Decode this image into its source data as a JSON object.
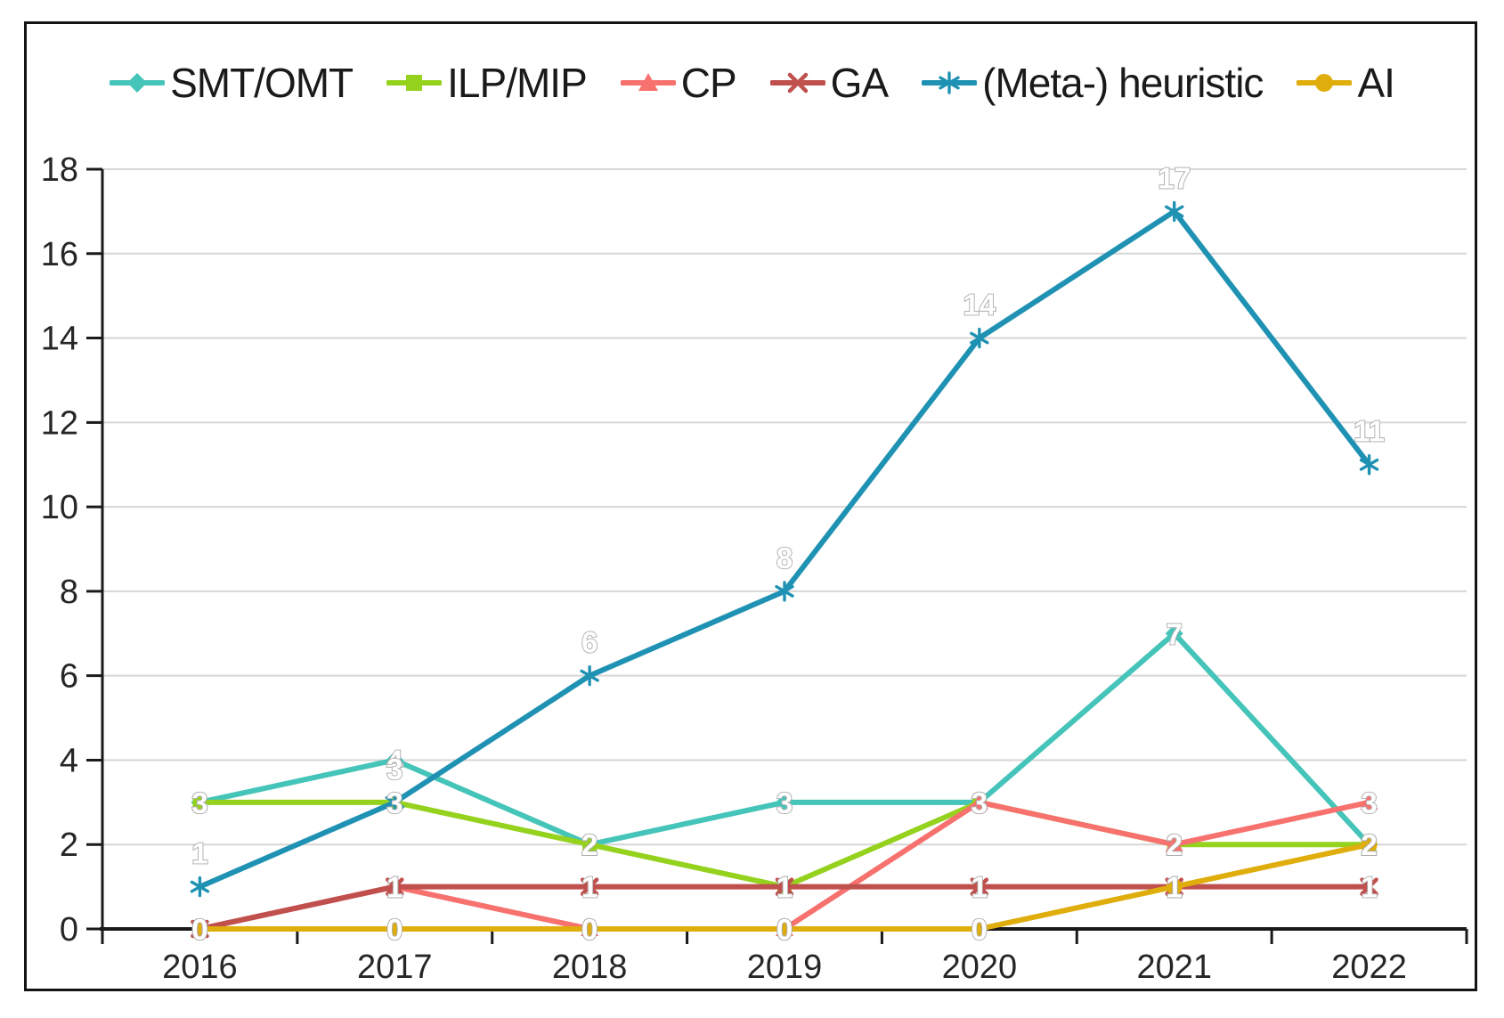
{
  "chart_data": {
    "type": "line",
    "title": "",
    "categories": [
      "2016",
      "2017",
      "2018",
      "2019",
      "2020",
      "2021",
      "2022"
    ],
    "series": [
      {
        "name": "SMT/OMT",
        "marker": "diamond",
        "color": "#45C4B9",
        "values": [
          3,
          4,
          2,
          3,
          3,
          7,
          2
        ],
        "label_position": "center"
      },
      {
        "name": "ILP/MIP",
        "marker": "square",
        "color": "#95D21E",
        "values": [
          3,
          3,
          2,
          1,
          3,
          2,
          2
        ],
        "label_position": "center"
      },
      {
        "name": "CP",
        "marker": "triangle",
        "color": "#F7716E",
        "values": [
          0,
          1,
          0,
          0,
          3,
          2,
          3
        ],
        "label_position": "center"
      },
      {
        "name": "GA",
        "marker": "x",
        "color": "#C0504D",
        "values": [
          0,
          1,
          1,
          1,
          1,
          1,
          1
        ],
        "label_position": "center"
      },
      {
        "name": "(Meta-) heuristic",
        "marker": "asterisk",
        "color": "#1F92B4",
        "values": [
          1,
          3,
          6,
          8,
          14,
          17,
          11
        ],
        "label_position": "above"
      },
      {
        "name": "AI",
        "marker": "circle",
        "color": "#DFAD0C",
        "values": [
          0,
          0,
          0,
          0,
          0,
          1,
          2
        ],
        "label_position": "center"
      }
    ],
    "y_axis": {
      "min": 0,
      "max": 18,
      "step": 2,
      "tick_labels": [
        "0",
        "2",
        "4",
        "6",
        "8",
        "10",
        "12",
        "14",
        "16",
        "18"
      ]
    },
    "x_axis": {
      "tick_labels": [
        "2016",
        "2017",
        "2018",
        "2019",
        "2020",
        "2021",
        "2022"
      ]
    },
    "grid": "horizontal-only",
    "legend_position": "top",
    "data_labels": "shown-white-outlined",
    "colors": {
      "axis": "#1a1a1a",
      "gridline": "#D6D6D6",
      "background": "#ffffff",
      "border": "#141414"
    }
  }
}
